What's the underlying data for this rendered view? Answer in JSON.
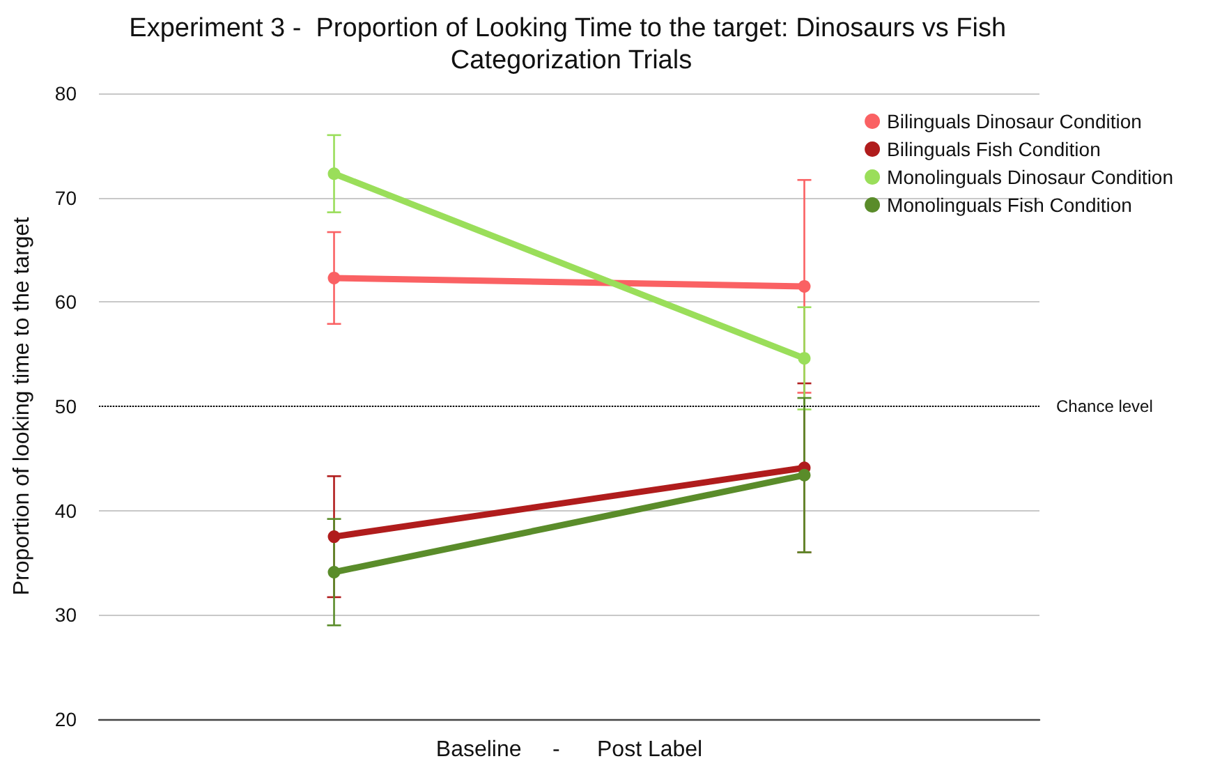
{
  "chart_data": {
    "type": "line",
    "title": "Experiment 3 -  Proportion of Looking Time to the target: Dinosaurs vs Fish Categorization Trials",
    "xlabel": "Baseline     -      Post Label",
    "ylabel": "Proportion of looking time to the target",
    "categories": [
      null,
      null
    ],
    "series": [
      {
        "name": "Bilinguals Dinosaur Condition",
        "color": "#fa6163",
        "values": [
          62.3,
          61.5
        ],
        "errors": [
          4.4,
          10.2
        ]
      },
      {
        "name": "Bilinguals Fish Condition",
        "color": "#b01c1c",
        "values": [
          37.5,
          44.1
        ],
        "errors": [
          5.8,
          8.1
        ]
      },
      {
        "name": "Monolinguals Dinosaur Condition",
        "color": "#9ade5a",
        "values": [
          72.3,
          54.6
        ],
        "errors": [
          3.7,
          4.9
        ]
      },
      {
        "name": "Monolinguals Fish Condition",
        "color": "#5a8c2a",
        "values": [
          34.1,
          43.4
        ],
        "errors": [
          5.1,
          7.4
        ]
      }
    ],
    "ylim": [
      20,
      80
    ],
    "yticks": [
      20,
      30,
      40,
      50,
      60,
      70,
      80
    ],
    "grid": "y",
    "legend": "top right",
    "marker": "circle",
    "line_style": "solid",
    "ref_lines": [
      {
        "axis": "y",
        "value": 50,
        "label": "Chance level",
        "color": "#000000",
        "line_style": "dotted"
      }
    ]
  }
}
